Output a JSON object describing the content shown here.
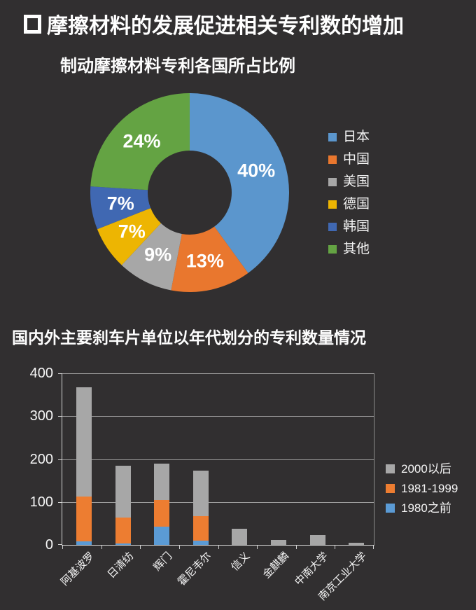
{
  "slide": {
    "title": "摩擦材料的发展促进相关专利数的增加",
    "background_color": "#312F30",
    "text_color": "#FFFFFF"
  },
  "chart_data": [
    {
      "type": "pie",
      "subtype": "donut",
      "title": "制动摩擦材料专利各国所占比例",
      "labels": [
        "日本",
        "中国",
        "美国",
        "德国",
        "韩国",
        "其他"
      ],
      "values": [
        40,
        13,
        9,
        7,
        7,
        24
      ],
      "data_labels": [
        "40%",
        "13%",
        "9%",
        "7%",
        "7%",
        "24%"
      ],
      "colors": [
        "#5B96CD",
        "#E9772E",
        "#A7A7A7",
        "#EDB502",
        "#4068B2",
        "#64A343"
      ],
      "start_angle_deg": 0,
      "direction": "clockwise",
      "legend_position": "right"
    },
    {
      "type": "bar",
      "subtype": "stacked-column",
      "title": "国内外主要刹车片单位以年代划分的专利数量情况",
      "categories": [
        "阿基波罗",
        "日清纺",
        "辉门",
        "霍尼韦尔",
        "信义",
        "金麒麟",
        "中南大学",
        "南京工业大学"
      ],
      "series": [
        {
          "name": "1980之前",
          "color": "#5B9BD5",
          "values": [
            8,
            3,
            43,
            10,
            0,
            0,
            0,
            0
          ]
        },
        {
          "name": "1981-1999",
          "color": "#ED7D31",
          "values": [
            105,
            60,
            62,
            57,
            0,
            0,
            0,
            0
          ]
        },
        {
          "name": "2000以后",
          "color": "#A7A7A7",
          "values": [
            255,
            122,
            85,
            106,
            38,
            12,
            23,
            5
          ]
        }
      ],
      "legend": [
        {
          "label": "2000以后",
          "color": "#A7A7A7"
        },
        {
          "label": "1981-1999",
          "color": "#ED7D31"
        },
        {
          "label": "1980之前",
          "color": "#5B9BD5"
        }
      ],
      "ylim": [
        0,
        400
      ],
      "yticks": [
        0,
        100,
        200,
        300,
        400
      ],
      "grid": true,
      "legend_position": "right"
    }
  ]
}
